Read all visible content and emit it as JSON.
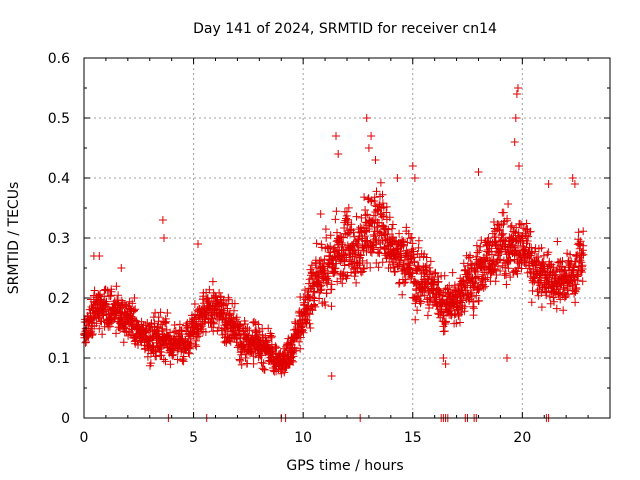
{
  "chart_data": {
    "type": "scatter",
    "title": "Day 141 of 2024, SRMTID for receiver cn14",
    "xlabel": "GPS time / hours",
    "ylabel": "SRMTID / TECUs",
    "xlim": [
      0,
      24
    ],
    "ylim": [
      0,
      0.6
    ],
    "grid": true,
    "marker": "+",
    "marker_color": "#e00000",
    "xticks": [
      0,
      5,
      10,
      15,
      20
    ],
    "xtick_labels": [
      "0",
      "5",
      "10",
      "15",
      "20"
    ],
    "yticks": [
      0,
      0.1,
      0.2,
      0.3,
      0.4,
      0.5,
      0.6
    ],
    "ytick_labels": [
      "0",
      "0.1",
      "0.2",
      "0.3",
      "0.4",
      "0.5",
      "0.6"
    ],
    "series": [
      {
        "name": "SRMTID",
        "trend": {
          "x": [
            0,
            0.5,
            1.0,
            1.5,
            2.0,
            2.5,
            3.0,
            3.5,
            4.0,
            4.5,
            5.0,
            5.5,
            6.0,
            6.5,
            7.0,
            7.5,
            8.0,
            8.5,
            9.0,
            9.5,
            10.0,
            10.5,
            11.0,
            11.5,
            12.0,
            12.5,
            13.0,
            13.5,
            14.0,
            14.5,
            15.0,
            15.5,
            16.0,
            16.5,
            17.0,
            17.5,
            18.0,
            18.5,
            19.0,
            19.5,
            20.0,
            20.5,
            21.0,
            21.5,
            22.0,
            22.5,
            22.8
          ],
          "y": [
            0.14,
            0.17,
            0.19,
            0.18,
            0.16,
            0.14,
            0.13,
            0.14,
            0.12,
            0.13,
            0.15,
            0.17,
            0.18,
            0.17,
            0.14,
            0.12,
            0.13,
            0.11,
            0.09,
            0.12,
            0.17,
            0.22,
            0.24,
            0.27,
            0.29,
            0.28,
            0.31,
            0.32,
            0.29,
            0.27,
            0.25,
            0.24,
            0.2,
            0.18,
            0.2,
            0.22,
            0.24,
            0.27,
            0.29,
            0.28,
            0.3,
            0.25,
            0.24,
            0.22,
            0.23,
            0.25,
            0.27
          ],
          "spread": [
            0.03,
            0.04,
            0.05,
            0.04,
            0.04,
            0.03,
            0.04,
            0.05,
            0.03,
            0.03,
            0.04,
            0.05,
            0.04,
            0.05,
            0.04,
            0.04,
            0.04,
            0.03,
            0.03,
            0.04,
            0.05,
            0.06,
            0.06,
            0.07,
            0.07,
            0.06,
            0.08,
            0.08,
            0.06,
            0.06,
            0.06,
            0.06,
            0.05,
            0.05,
            0.05,
            0.06,
            0.06,
            0.06,
            0.07,
            0.07,
            0.07,
            0.06,
            0.05,
            0.05,
            0.05,
            0.06,
            0.06
          ],
          "points_per_hour": 110
        },
        "spikes": [
          {
            "x": 0.45,
            "y": 0.27
          },
          {
            "x": 0.7,
            "y": 0.27
          },
          {
            "x": 1.7,
            "y": 0.25
          },
          {
            "x": 3.6,
            "y": 0.33
          },
          {
            "x": 3.65,
            "y": 0.3
          },
          {
            "x": 5.2,
            "y": 0.29
          },
          {
            "x": 11.5,
            "y": 0.47
          },
          {
            "x": 11.6,
            "y": 0.44
          },
          {
            "x": 12.9,
            "y": 0.5
          },
          {
            "x": 13.1,
            "y": 0.47
          },
          {
            "x": 13.0,
            "y": 0.45
          },
          {
            "x": 13.3,
            "y": 0.43
          },
          {
            "x": 14.3,
            "y": 0.4
          },
          {
            "x": 15.0,
            "y": 0.42
          },
          {
            "x": 15.1,
            "y": 0.4
          },
          {
            "x": 18.0,
            "y": 0.41
          },
          {
            "x": 19.8,
            "y": 0.55
          },
          {
            "x": 19.75,
            "y": 0.54
          },
          {
            "x": 19.7,
            "y": 0.5
          },
          {
            "x": 19.65,
            "y": 0.46
          },
          {
            "x": 19.85,
            "y": 0.42
          },
          {
            "x": 21.2,
            "y": 0.39
          },
          {
            "x": 22.3,
            "y": 0.4
          },
          {
            "x": 22.4,
            "y": 0.39
          },
          {
            "x": 11.3,
            "y": 0.07
          },
          {
            "x": 16.4,
            "y": 0.1
          },
          {
            "x": 16.5,
            "y": 0.09
          },
          {
            "x": 19.3,
            "y": 0.1
          },
          {
            "x": 2.3,
            "y": 0.2
          },
          {
            "x": 10.8,
            "y": 0.34
          }
        ],
        "zero_points_x": [
          3.85,
          5.6,
          9.0,
          9.2,
          12.6,
          16.3,
          16.4,
          16.5,
          16.6,
          17.4,
          17.5,
          17.8,
          17.9,
          21.1,
          21.2
        ]
      }
    ]
  }
}
